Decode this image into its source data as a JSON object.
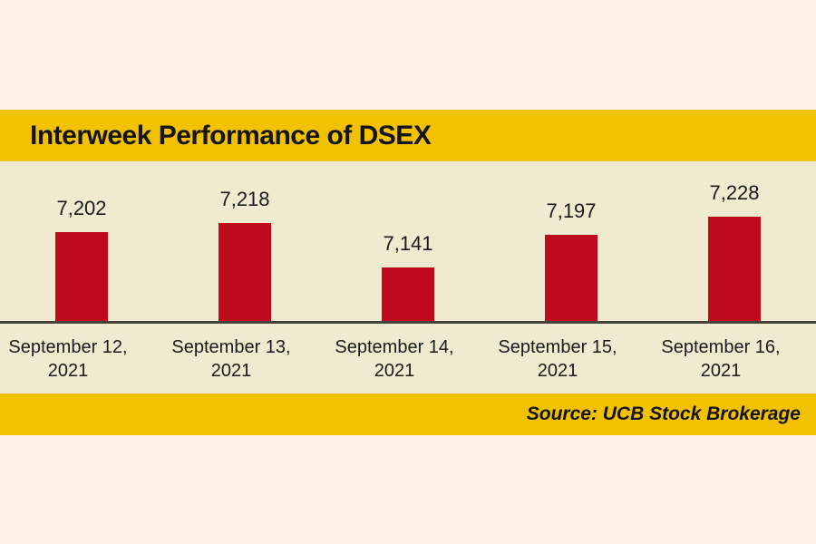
{
  "page": {
    "background_color": "#FDF3E7",
    "band_color": "#F2C202"
  },
  "chart_data": {
    "type": "bar",
    "title": "Interweek Performance of DSEX",
    "categories": [
      "September 12, 2021",
      "September 13, 2021",
      "September 14, 2021",
      "September 15, 2021",
      "September 16, 2021"
    ],
    "category_lines": [
      [
        "September 12,",
        "2021"
      ],
      [
        "September 13,",
        "2021"
      ],
      [
        "September 14,",
        "2021"
      ],
      [
        "September 15,",
        "2021"
      ],
      [
        "September 16,",
        "2021"
      ]
    ],
    "values": [
      7202,
      7218,
      7141,
      7197,
      7228
    ],
    "value_labels": [
      "7,202",
      "7,218",
      "7,141",
      "7,197",
      "7,228"
    ],
    "xlabel": "",
    "ylabel": "",
    "ylim": [
      7050,
      7250
    ],
    "grid": false,
    "legend": "none",
    "y_axis_visible": false,
    "bar_color": "#C00A1E",
    "plot_background": "#F0EBD0",
    "axis_line_color": "#44423C",
    "title_text_color": "#141414",
    "label_text_color": "#1A1A1A",
    "source_note": "Source: UCB Stock Brokerage"
  }
}
